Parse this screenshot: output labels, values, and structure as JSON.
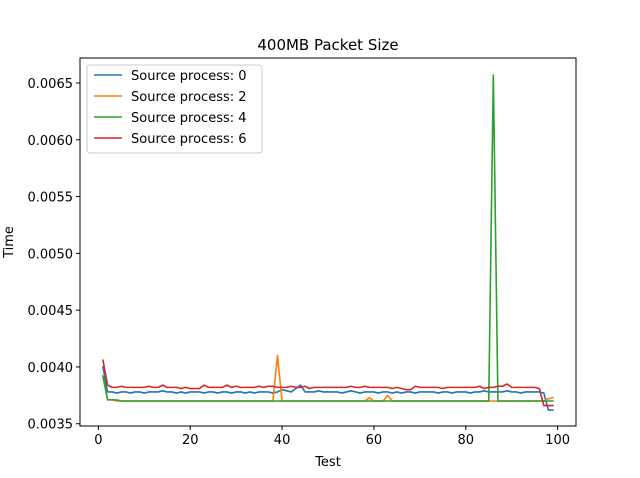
{
  "chart_data": {
    "type": "line",
    "title": "400MB Packet Size",
    "xlabel": "Test",
    "ylabel": "Time",
    "xlim": [
      -4.0,
      104.0
    ],
    "ylim": [
      0.00348,
      0.00672
    ],
    "xticks": [
      0,
      20,
      40,
      60,
      80,
      100
    ],
    "yticks": [
      0.0035,
      0.004,
      0.0045,
      0.005,
      0.0055,
      0.006,
      0.0065
    ],
    "ytick_labels": [
      "0.0035",
      "0.0040",
      "0.0045",
      "0.0050",
      "0.0055",
      "0.0060",
      "0.0065"
    ],
    "legend_position": "top-left",
    "grid": false,
    "x": [
      1,
      2,
      3,
      4,
      5,
      6,
      7,
      8,
      9,
      10,
      11,
      12,
      13,
      14,
      15,
      16,
      17,
      18,
      19,
      20,
      21,
      22,
      23,
      24,
      25,
      26,
      27,
      28,
      29,
      30,
      31,
      32,
      33,
      34,
      35,
      36,
      37,
      38,
      39,
      40,
      41,
      42,
      43,
      44,
      45,
      46,
      47,
      48,
      49,
      50,
      51,
      52,
      53,
      54,
      55,
      56,
      57,
      58,
      59,
      60,
      61,
      62,
      63,
      64,
      65,
      66,
      67,
      68,
      69,
      70,
      71,
      72,
      73,
      74,
      75,
      76,
      77,
      78,
      79,
      80,
      81,
      82,
      83,
      84,
      85,
      86,
      87,
      88,
      89,
      90,
      91,
      92,
      93,
      94,
      95,
      96,
      97,
      98,
      99
    ],
    "series": [
      {
        "name": "Source process: 0",
        "color": "#1f77b4",
        "values": [
          0.004,
          0.00378,
          0.00378,
          0.00377,
          0.00378,
          0.00378,
          0.00377,
          0.00378,
          0.00378,
          0.00377,
          0.00378,
          0.00378,
          0.00378,
          0.00379,
          0.00378,
          0.00378,
          0.00377,
          0.00378,
          0.00377,
          0.00378,
          0.00378,
          0.00378,
          0.00377,
          0.00378,
          0.00378,
          0.00377,
          0.00378,
          0.00378,
          0.00377,
          0.00378,
          0.00378,
          0.00377,
          0.00378,
          0.00377,
          0.00378,
          0.00378,
          0.00378,
          0.00377,
          0.00378,
          0.0038,
          0.00379,
          0.00378,
          0.00381,
          0.00384,
          0.00378,
          0.00378,
          0.00378,
          0.00379,
          0.00378,
          0.00378,
          0.00378,
          0.00378,
          0.00377,
          0.00378,
          0.00379,
          0.00378,
          0.00377,
          0.00378,
          0.00378,
          0.00378,
          0.00377,
          0.00378,
          0.00378,
          0.00377,
          0.00378,
          0.00377,
          0.00378,
          0.00378,
          0.00377,
          0.00378,
          0.00378,
          0.00378,
          0.00378,
          0.00377,
          0.00378,
          0.00378,
          0.00377,
          0.00378,
          0.00378,
          0.00378,
          0.00377,
          0.00378,
          0.00378,
          0.00379,
          0.00378,
          0.00378,
          0.00378,
          0.00378,
          0.00379,
          0.00378,
          0.00378,
          0.00377,
          0.00378,
          0.00378,
          0.00378,
          0.00378,
          0.00377,
          0.00362,
          0.00362
        ]
      },
      {
        "name": "Source process: 2",
        "color": "#ff7f0e",
        "values": [
          0.00392,
          0.00371,
          0.00371,
          0.0037,
          0.0037,
          0.0037,
          0.0037,
          0.0037,
          0.0037,
          0.0037,
          0.0037,
          0.0037,
          0.0037,
          0.0037,
          0.0037,
          0.0037,
          0.0037,
          0.0037,
          0.0037,
          0.0037,
          0.0037,
          0.0037,
          0.0037,
          0.0037,
          0.0037,
          0.0037,
          0.0037,
          0.0037,
          0.0037,
          0.0037,
          0.0037,
          0.0037,
          0.0037,
          0.0037,
          0.0037,
          0.0037,
          0.0037,
          0.0037,
          0.0041,
          0.0037,
          0.0037,
          0.0037,
          0.0037,
          0.0037,
          0.0037,
          0.0037,
          0.0037,
          0.0037,
          0.0037,
          0.0037,
          0.0037,
          0.0037,
          0.0037,
          0.0037,
          0.0037,
          0.0037,
          0.0037,
          0.0037,
          0.00373,
          0.0037,
          0.0037,
          0.0037,
          0.00375,
          0.0037,
          0.0037,
          0.0037,
          0.0037,
          0.0037,
          0.0037,
          0.0037,
          0.0037,
          0.0037,
          0.0037,
          0.0037,
          0.0037,
          0.0037,
          0.0037,
          0.0037,
          0.0037,
          0.0037,
          0.0037,
          0.0037,
          0.0037,
          0.0037,
          0.0037,
          0.0037,
          0.0037,
          0.0037,
          0.0037,
          0.0037,
          0.0037,
          0.0037,
          0.0037,
          0.0037,
          0.0037,
          0.0037,
          0.0037,
          0.00372,
          0.00373
        ]
      },
      {
        "name": "Source process: 4",
        "color": "#2ca02c",
        "values": [
          0.00392,
          0.00371,
          0.00371,
          0.00371,
          0.0037,
          0.0037,
          0.0037,
          0.0037,
          0.0037,
          0.0037,
          0.0037,
          0.0037,
          0.0037,
          0.0037,
          0.0037,
          0.0037,
          0.0037,
          0.0037,
          0.0037,
          0.0037,
          0.0037,
          0.0037,
          0.0037,
          0.0037,
          0.0037,
          0.0037,
          0.0037,
          0.0037,
          0.0037,
          0.0037,
          0.0037,
          0.0037,
          0.0037,
          0.0037,
          0.0037,
          0.0037,
          0.0037,
          0.0037,
          0.0037,
          0.0037,
          0.0037,
          0.0037,
          0.0037,
          0.0037,
          0.0037,
          0.0037,
          0.0037,
          0.0037,
          0.0037,
          0.0037,
          0.0037,
          0.0037,
          0.0037,
          0.0037,
          0.0037,
          0.0037,
          0.0037,
          0.0037,
          0.0037,
          0.0037,
          0.0037,
          0.0037,
          0.0037,
          0.0037,
          0.0037,
          0.0037,
          0.0037,
          0.0037,
          0.0037,
          0.0037,
          0.0037,
          0.0037,
          0.0037,
          0.0037,
          0.0037,
          0.0037,
          0.0037,
          0.0037,
          0.0037,
          0.0037,
          0.0037,
          0.0037,
          0.0037,
          0.0037,
          0.0037,
          0.00657,
          0.0037,
          0.0037,
          0.0037,
          0.0037,
          0.0037,
          0.0037,
          0.0037,
          0.0037,
          0.0037,
          0.0037,
          0.0037,
          0.0037,
          0.0037
        ]
      },
      {
        "name": "Source process: 6",
        "color": "#d62728",
        "values": [
          0.00406,
          0.00384,
          0.00382,
          0.00382,
          0.00383,
          0.00382,
          0.00382,
          0.00382,
          0.00382,
          0.00382,
          0.00383,
          0.00382,
          0.00382,
          0.00384,
          0.00382,
          0.00382,
          0.00382,
          0.00381,
          0.00382,
          0.00381,
          0.00381,
          0.00381,
          0.00384,
          0.00382,
          0.00382,
          0.00382,
          0.00382,
          0.00384,
          0.00382,
          0.00383,
          0.00382,
          0.00382,
          0.00382,
          0.00382,
          0.00383,
          0.00382,
          0.00383,
          0.00383,
          0.00382,
          0.00382,
          0.00382,
          0.00383,
          0.00382,
          0.00382,
          0.00383,
          0.00381,
          0.00382,
          0.00382,
          0.00382,
          0.00382,
          0.00382,
          0.00382,
          0.00382,
          0.00382,
          0.00383,
          0.00382,
          0.00382,
          0.00383,
          0.00382,
          0.00382,
          0.00382,
          0.00382,
          0.00382,
          0.00381,
          0.00382,
          0.00381,
          0.0038,
          0.0038,
          0.00383,
          0.00382,
          0.00382,
          0.00382,
          0.00382,
          0.00382,
          0.00381,
          0.00382,
          0.00382,
          0.00382,
          0.00382,
          0.00382,
          0.00382,
          0.00382,
          0.00383,
          0.00381,
          0.00382,
          0.00382,
          0.00383,
          0.00383,
          0.00385,
          0.00382,
          0.00382,
          0.00382,
          0.00382,
          0.00382,
          0.00382,
          0.00381,
          0.00366,
          0.00366,
          0.00366
        ]
      }
    ]
  }
}
